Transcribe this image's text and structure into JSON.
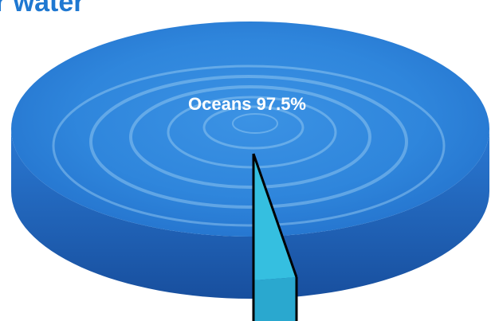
{
  "title_visible": "r water",
  "chart_data": {
    "type": "pie",
    "style": "3d-disc",
    "slices": [
      {
        "label": "Oceans 97.5%",
        "value": 97.5
      },
      {
        "label": "",
        "value": 2.5
      }
    ]
  },
  "colors": {
    "disc_top": "#2f86dc",
    "disc_side": "#1d5fb9",
    "wedge": "#35bfe0",
    "wedge_outline": "#000000",
    "title": "#1f78d1",
    "label": "#ffffff"
  }
}
